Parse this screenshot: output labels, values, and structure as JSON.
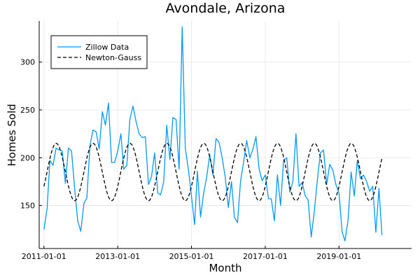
{
  "chart_data": {
    "type": "line",
    "title": "Avondale, Arizona",
    "xlabel": "Month",
    "ylabel": "Homes Sold",
    "x_range": [
      "2010-11-15",
      "2020-12-20"
    ],
    "ylim": [
      105,
      343
    ],
    "x_ticks": [
      "2011-01-01",
      "2013-01-01",
      "2015-01-01",
      "2017-01-01",
      "2019-01-01"
    ],
    "y_ticks": [
      150,
      200,
      250,
      300
    ],
    "grid": true,
    "legend": "top-left",
    "series": [
      {
        "name": "Zillow Data",
        "color": "#009af9",
        "style": "solid",
        "start": "2011-01-01",
        "values": [
          125,
          147,
          197,
          192,
          210,
          208,
          207,
          173,
          210,
          207,
          168,
          134,
          123,
          152,
          158,
          213,
          229,
          227,
          209,
          248,
          234,
          257,
          195,
          195,
          207,
          225,
          188,
          192,
          240,
          254,
          238,
          225,
          221,
          222,
          172,
          180,
          205,
          163,
          161,
          175,
          234,
          198,
          242,
          240,
          188,
          337,
          210,
          188,
          160,
          130,
          186,
          138,
          162,
          180,
          203,
          182,
          220,
          216,
          200,
          180,
          148,
          175,
          138,
          132,
          175,
          196,
          218,
          200,
          209,
          222,
          188,
          176,
          182,
          157,
          157,
          134,
          182,
          150,
          197,
          200,
          164,
          175,
          225,
          170,
          174,
          160,
          156,
          117,
          143,
          177,
          205,
          208,
          172,
          193,
          187,
          172,
          163,
          122,
          113,
          135,
          185,
          160,
          197,
          178,
          182,
          175,
          165,
          170,
          122,
          168,
          119
        ]
      },
      {
        "name": "Newton-Gauss",
        "color": "#000000",
        "style": "dashed",
        "model": {
          "mean": 185,
          "amplitude": 30,
          "period_months": 12,
          "peak_month_index": 4
        }
      }
    ]
  }
}
